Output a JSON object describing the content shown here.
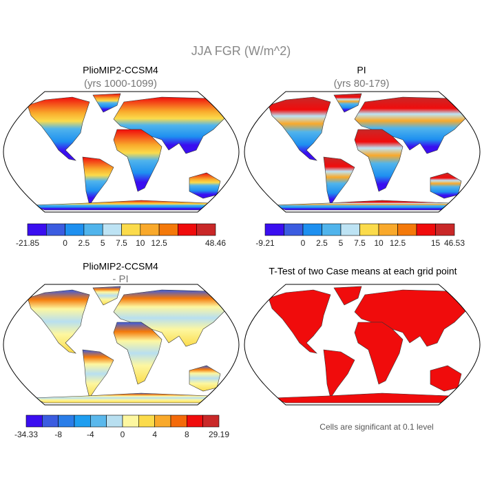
{
  "title": "JJA FGR (W/m^2)",
  "panels": [
    {
      "title": "PlioMIP2-CCSM4",
      "subtitle": "(yrs 1000-1099)",
      "colorbar": {
        "colors": [
          "#3a0ef0",
          "#3b5ce0",
          "#1e90f0",
          "#50b4ec",
          "#bde3f4",
          "#fbdb4b",
          "#f9a92b",
          "#f4790a",
          "#f00c0c",
          "#c92828"
        ],
        "labels": [
          "-21.85",
          null,
          "0",
          "2.5",
          "5",
          "7.5",
          "10",
          "12.5",
          null,
          null,
          "48.46"
        ]
      }
    },
    {
      "title": "PI",
      "subtitle": "(yrs 80-179)",
      "colorbar": {
        "colors": [
          "#3a0ef0",
          "#3b5ce0",
          "#1e90f0",
          "#50b4ec",
          "#bde3f4",
          "#fbdb4b",
          "#f9a92b",
          "#f4790a",
          "#f00c0c",
          "#c92828"
        ],
        "labels": [
          "-9.21",
          null,
          "0",
          "2.5",
          "5",
          "7.5",
          "10",
          "12.5",
          null,
          "15",
          "46.53"
        ]
      }
    },
    {
      "title": "PlioMIP2-CCSM4",
      "subtitle": "- PI",
      "colorbar": {
        "colors": [
          "#3a0ef0",
          "#3b5ce0",
          "#2a7de8",
          "#1e9ef0",
          "#5ab8ec",
          "#b8dff0",
          "#fdf7a0",
          "#fbdb4b",
          "#f9a92b",
          "#f46a0a",
          "#f00c0c",
          "#c92828"
        ],
        "labels": [
          "-34.33",
          null,
          "-8",
          null,
          "-4",
          null,
          "0",
          null,
          "4",
          null,
          "8",
          null,
          "29.19"
        ]
      }
    },
    {
      "title": "T-Test of two Case means at each grid point",
      "note": "Cells are significant at 0.1 level"
    }
  ]
}
